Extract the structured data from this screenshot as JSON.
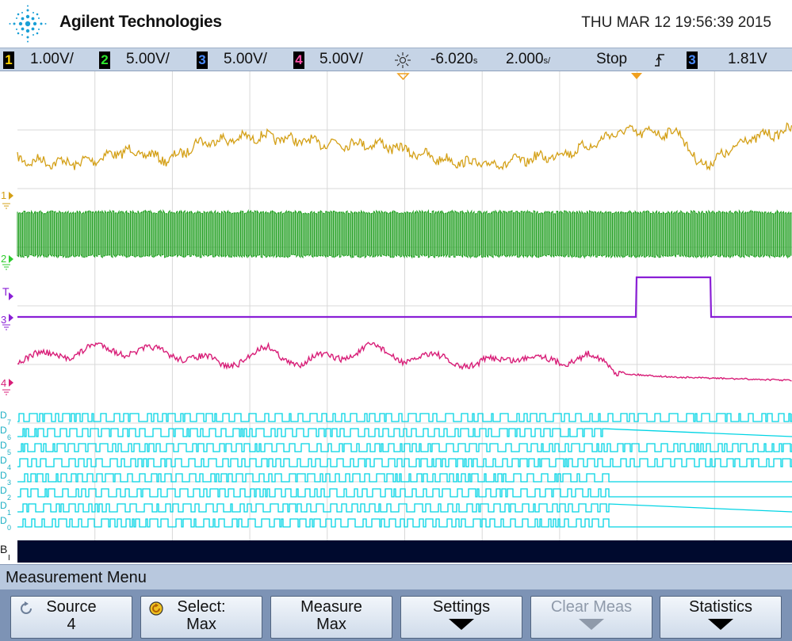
{
  "header": {
    "brand": "Agilent Technologies",
    "datetime": "THU MAR 12 19:56:39 2015"
  },
  "status_bar": {
    "channels": [
      {
        "number": "1",
        "scale": "1.00V/",
        "color": "#ffd400"
      },
      {
        "number": "2",
        "scale": "5.00V/",
        "color": "#2ee82e"
      },
      {
        "number": "3",
        "scale": "5.00V/",
        "color": "#4a8cff"
      },
      {
        "number": "4",
        "scale": "5.00V/",
        "color": "#ff4fa8"
      }
    ],
    "delay_value": "-6.020",
    "delay_unit": "s",
    "time_value": "2.000",
    "time_unit": "s/",
    "run_state": "Stop",
    "trigger_edge_icon": "rising-edge-icon",
    "trigger_channel": "3",
    "trigger_level": "1.81V"
  },
  "scope": {
    "grid": {
      "columns": 10,
      "rows": 8
    },
    "colors": {
      "ch1": "#d4a017",
      "ch2": "#1e9e1e",
      "ch3": "#8a1fd6",
      "ch4": "#d81e78",
      "digital": "#00d4e4",
      "bus": "#000a2e",
      "grid": "#d8d8d8"
    },
    "markers": {
      "ch1": "1",
      "ch2": "2",
      "trigger": "T",
      "ch3": "3",
      "ch4": "4",
      "bus": "B",
      "bus_sub": "I"
    },
    "digital_labels": [
      {
        "letter": "D",
        "sub": "7"
      },
      {
        "letter": "D",
        "sub": "6"
      },
      {
        "letter": "D",
        "sub": "5"
      },
      {
        "letter": "D",
        "sub": "4"
      },
      {
        "letter": "D",
        "sub": "3"
      },
      {
        "letter": "D",
        "sub": "2"
      },
      {
        "letter": "D",
        "sub": "1"
      },
      {
        "letter": "D",
        "sub": "0"
      }
    ]
  },
  "menu": {
    "title": "Measurement Menu",
    "softkeys": [
      {
        "line1": "Source",
        "line2": "4",
        "icon": "rotate-knob-icon",
        "disabled": false
      },
      {
        "line1": "Select:",
        "line2": "Max",
        "icon": "entry-knob-icon",
        "disabled": false
      },
      {
        "line1": "Measure",
        "line2": "Max",
        "icon": "",
        "disabled": false
      },
      {
        "line1": "Settings",
        "line2": "",
        "icon": "submenu-arrow-icon",
        "disabled": false
      },
      {
        "line1": "Clear Meas",
        "line2": "",
        "icon": "submenu-arrow-icon",
        "disabled": true
      },
      {
        "line1": "Statistics",
        "line2": "",
        "icon": "submenu-arrow-icon",
        "disabled": false
      }
    ]
  }
}
